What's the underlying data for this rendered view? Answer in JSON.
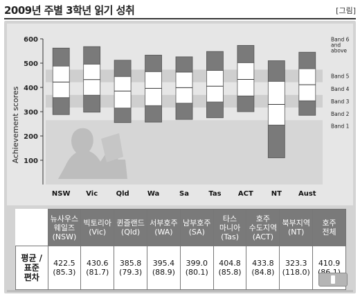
{
  "header": {
    "title": "2009년 주별 3학년 읽기 성취",
    "tag": "[그림]"
  },
  "chart_data": {
    "type": "box",
    "ylabel": "Achievement scores",
    "ylim": [
      0,
      600
    ],
    "yticks": [
      100,
      200,
      300,
      400,
      500,
      600
    ],
    "categories": [
      "NSW",
      "Vic",
      "Qld",
      "Wa",
      "Sa",
      "Tas",
      "ACT",
      "NT",
      "Aust"
    ],
    "boxes": [
      {
        "low": 288,
        "q1": 358,
        "median": 422,
        "q3": 488,
        "high": 562
      },
      {
        "low": 298,
        "q1": 368,
        "median": 432,
        "q3": 496,
        "high": 568
      },
      {
        "low": 255,
        "q1": 315,
        "median": 385,
        "q3": 445,
        "high": 512
      },
      {
        "low": 257,
        "q1": 325,
        "median": 396,
        "q3": 465,
        "high": 533
      },
      {
        "low": 268,
        "q1": 335,
        "median": 399,
        "q3": 463,
        "high": 526
      },
      {
        "low": 275,
        "q1": 340,
        "median": 405,
        "q3": 470,
        "high": 548
      },
      {
        "low": 300,
        "q1": 365,
        "median": 433,
        "q3": 502,
        "high": 573
      },
      {
        "low": 110,
        "q1": 245,
        "median": 330,
        "q3": 425,
        "high": 510
      },
      {
        "low": 285,
        "q1": 345,
        "median": 411,
        "q3": 477,
        "high": 545
      }
    ],
    "bands": [
      {
        "label": "Band 6 and above",
        "from": 473,
        "to": 600
      },
      {
        "label": "Band 5",
        "from": 421,
        "to": 473
      },
      {
        "label": "Band 4",
        "from": 369,
        "to": 421
      },
      {
        "label": "Band 3",
        "from": 317,
        "to": 369
      },
      {
        "label": "Band 2",
        "from": 265,
        "to": 317
      },
      {
        "label": "Band 1",
        "from": 0,
        "to": 265
      }
    ]
  },
  "table": {
    "columns": [
      [
        "뉴사우스",
        "웨일즈",
        "(NSW)"
      ],
      [
        "빅토리아",
        "(Vic)"
      ],
      [
        "퀸즐랜드",
        "(Qld)"
      ],
      [
        "서부호주",
        "(WA)"
      ],
      [
        "남부호주",
        "(SA)"
      ],
      [
        "타스",
        "마니아",
        "(Tas)"
      ],
      [
        "호주",
        "수도지역",
        "(ACT)"
      ],
      [
        "북부지역",
        "(NT)"
      ],
      [
        "호주",
        "전체"
      ]
    ],
    "row_label": [
      "평균 /",
      "표준",
      "편차"
    ],
    "means": [
      "422.5",
      "430.6",
      "385.8",
      "395.4",
      "399.0",
      "404.8",
      "433.8",
      "323.3",
      "410.9"
    ],
    "sds": [
      "(85.3)",
      "(81.7)",
      "(79.3)",
      "(88.9)",
      "(80.1)",
      "(85.8)",
      "(84.8)",
      "(118.0)",
      "(86.1)"
    ]
  }
}
